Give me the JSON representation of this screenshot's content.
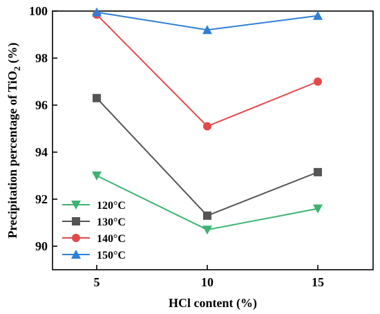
{
  "chart_data": {
    "type": "line",
    "title": "",
    "xlabel": "HCl content (%)",
    "ylabel_prefix": "Precipitation percentage of TiO",
    "ylabel_sub": "2",
    "ylabel_suffix": " (%)",
    "x": [
      5,
      10,
      15
    ],
    "x_ticks": [
      5,
      10,
      15
    ],
    "y_ticks": [
      90,
      92,
      94,
      96,
      98,
      100
    ],
    "xlim": [
      3,
      17.5
    ],
    "ylim": [
      89,
      100
    ],
    "grid": false,
    "legend_position": "bottom-left",
    "series": [
      {
        "name": "120°C",
        "values": [
          93.0,
          90.7,
          91.6
        ],
        "color": "#3cb371",
        "marker": "triangle-down"
      },
      {
        "name": "130°C",
        "values": [
          96.3,
          91.3,
          93.15
        ],
        "color": "#555555",
        "marker": "square"
      },
      {
        "name": "140°C",
        "values": [
          99.85,
          95.1,
          97.0
        ],
        "color": "#e24a4a",
        "marker": "circle"
      },
      {
        "name": "150°C",
        "values": [
          99.95,
          99.2,
          99.8
        ],
        "color": "#2f7fd6",
        "marker": "triangle-up"
      }
    ]
  }
}
